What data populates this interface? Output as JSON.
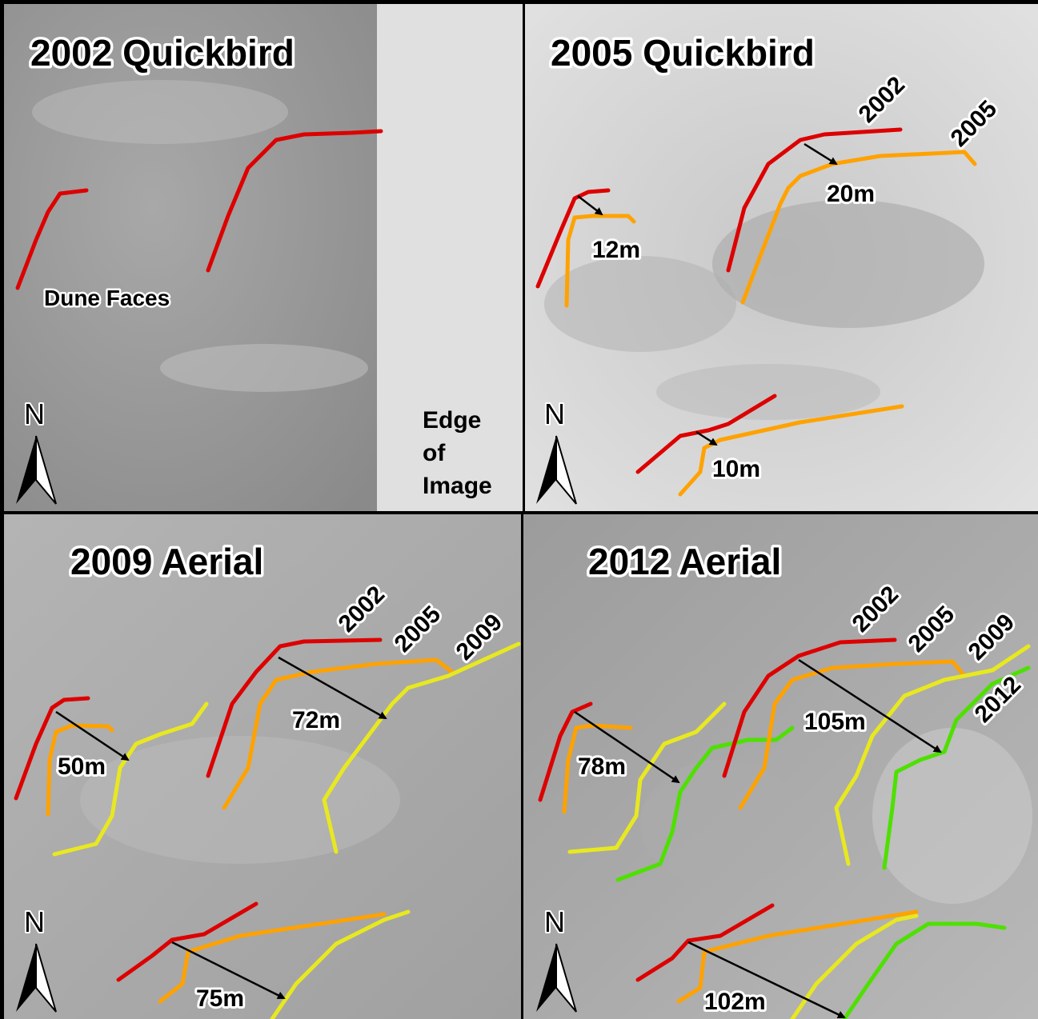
{
  "panels": [
    {
      "title": "2002 Quickbird",
      "north": "N",
      "annotation": "Dune Faces",
      "edge_note": [
        "Edge",
        "of",
        "Image"
      ]
    },
    {
      "title": "2005 Quickbird",
      "north": "N",
      "years": [
        "2002",
        "2005"
      ],
      "distances": [
        "12m",
        "20m",
        "10m"
      ]
    },
    {
      "title": "2009 Aerial",
      "north": "N",
      "years": [
        "2002",
        "2005",
        "2009"
      ],
      "distances": [
        "50m",
        "72m",
        "75m"
      ]
    },
    {
      "title": "2012 Aerial",
      "north": "N",
      "years": [
        "2002",
        "2005",
        "2009",
        "2012"
      ],
      "distances": [
        "78m",
        "105m",
        "102m"
      ]
    }
  ]
}
